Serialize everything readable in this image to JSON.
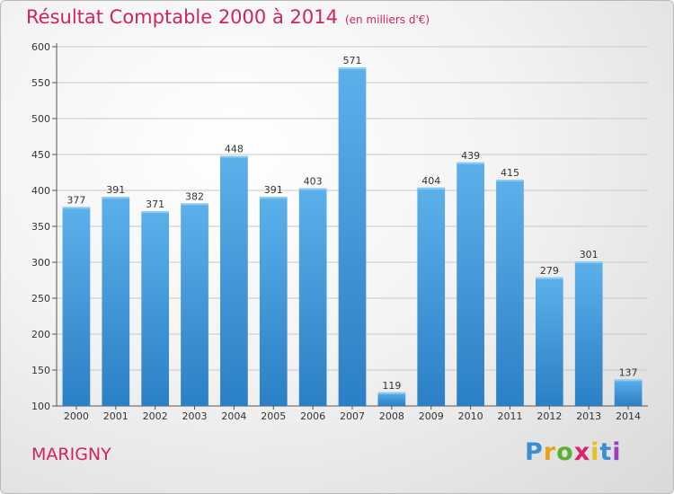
{
  "chart_data": {
    "type": "bar",
    "title": "Résultat Comptable 2000 à 2014",
    "subtitle": "(en milliers d'€)",
    "xlabel": "",
    "ylabel": "",
    "categories": [
      "2000",
      "2001",
      "2002",
      "2003",
      "2004",
      "2005",
      "2006",
      "2007",
      "2008",
      "2009",
      "2010",
      "2011",
      "2012",
      "2013",
      "2014"
    ],
    "values": [
      377,
      391,
      371,
      382,
      448,
      391,
      403,
      571,
      119,
      404,
      439,
      415,
      279,
      301,
      137
    ],
    "ylim": [
      100,
      600
    ],
    "yticks": [
      100,
      150,
      200,
      250,
      300,
      350,
      400,
      450,
      500,
      550,
      600
    ],
    "grid": true,
    "legend": "none"
  },
  "location": "MARIGNY",
  "logo": {
    "letters": [
      "P",
      "r",
      "o",
      "x",
      "i",
      "t",
      "i"
    ],
    "colors": [
      "#3a8fd0",
      "#e8a21c",
      "#5bb030",
      "#d6246e",
      "#e8c11c",
      "#3a8fd0",
      "#9b3ec0"
    ]
  },
  "colors": {
    "accent": "#d0245a",
    "bar": "#3f92d6",
    "bar_top": "#5aaee8"
  }
}
